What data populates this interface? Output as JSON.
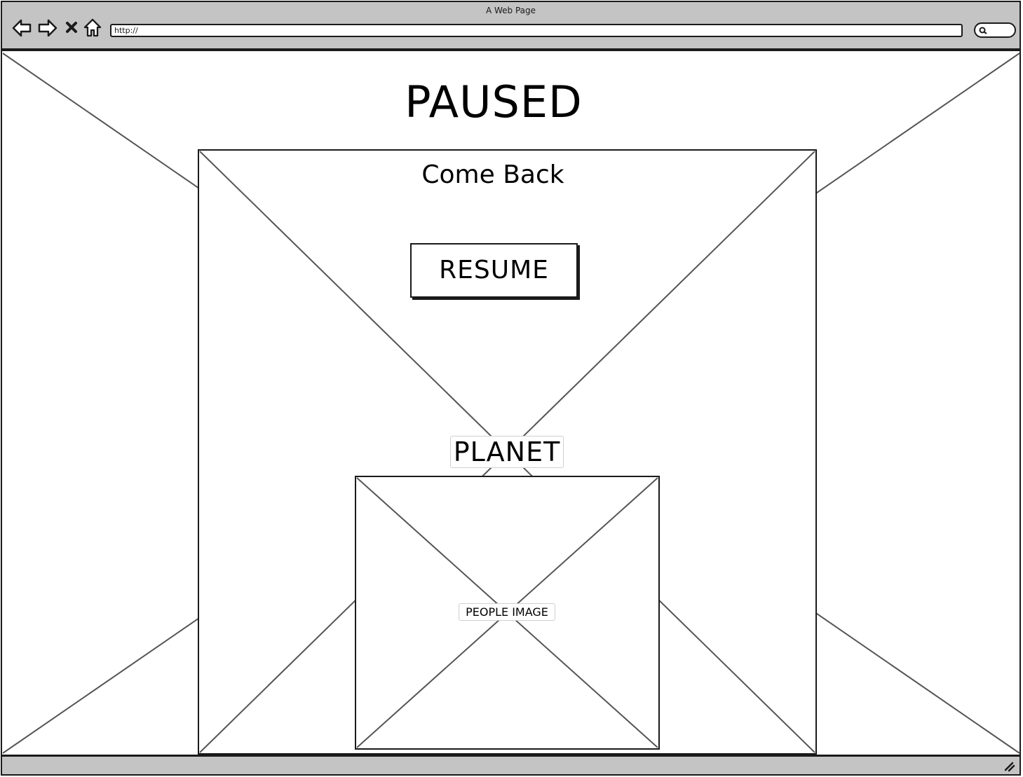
{
  "browser": {
    "window_title": "A Web Page",
    "url": "http://",
    "icons": {
      "back": "back-arrow-icon",
      "forward": "forward-arrow-icon",
      "stop": "close-icon",
      "home": "home-icon",
      "search": "search-icon",
      "resize": "resize-grip-icon"
    },
    "chrome_color": "#c4c4c4",
    "stroke_color": "#1a1a1a"
  },
  "page": {
    "title": "PAUSED",
    "panel": {
      "heading": "Come Back",
      "resume_label": "RESUME",
      "planet_label": "PLANET",
      "people_image_label": "PEOPLE IMAGE"
    }
  }
}
